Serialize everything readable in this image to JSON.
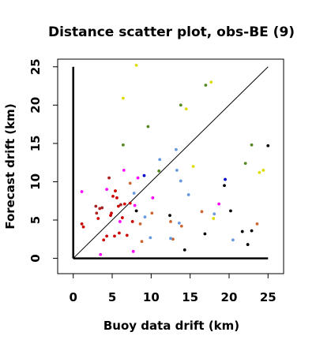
{
  "chart_data": {
    "type": "scatter",
    "title": "Distance scatter plot, obs-BE (9)",
    "xlabel": "Buoy data drift (km)",
    "ylabel": "Forecast drift (km)",
    "xlim": [
      -2,
      27
    ],
    "ylim": [
      -2,
      26
    ],
    "xticks": [
      0,
      5,
      10,
      15,
      20,
      25
    ],
    "yticks": [
      0,
      5,
      10,
      15,
      20,
      25
    ],
    "x_tick_labels": [
      "0",
      "5",
      "10",
      "15",
      "20",
      "25"
    ],
    "y_tick_labels": [
      "0",
      "5",
      "10",
      "15",
      "20",
      "25"
    ],
    "grid": false,
    "legend": "none",
    "reference_axes": {
      "x": [
        0,
        25
      ],
      "y": [
        0,
        25
      ]
    },
    "reference_line": {
      "from": [
        0,
        0
      ],
      "to": [
        25,
        25
      ]
    },
    "points": [
      {
        "x": 1.1,
        "y": 4.5,
        "color": "#cc0000"
      },
      {
        "x": 1.3,
        "y": 4.1,
        "color": "#cc0000"
      },
      {
        "x": 2.9,
        "y": 6.8,
        "color": "#aa2222"
      },
      {
        "x": 3.0,
        "y": 5.9,
        "color": "#aa2222"
      },
      {
        "x": 3.2,
        "y": 5.2,
        "color": "#cc0000"
      },
      {
        "x": 3.4,
        "y": 6.5,
        "color": "#aa2222"
      },
      {
        "x": 3.7,
        "y": 6.6,
        "color": "#aa2222"
      },
      {
        "x": 3.9,
        "y": 2.4,
        "color": "#cc0000"
      },
      {
        "x": 4.3,
        "y": 2.9,
        "color": "#cc0000"
      },
      {
        "x": 4.6,
        "y": 10.5,
        "color": "#aa2222"
      },
      {
        "x": 4.8,
        "y": 5.6,
        "color": "#cc0000"
      },
      {
        "x": 4.9,
        "y": 5.9,
        "color": "#cc0000"
      },
      {
        "x": 5.1,
        "y": 8.1,
        "color": "#cc0000"
      },
      {
        "x": 5.3,
        "y": 2.9,
        "color": "#cc0000"
      },
      {
        "x": 5.4,
        "y": 8.8,
        "color": "#cc0000"
      },
      {
        "x": 5.6,
        "y": 7.9,
        "color": "#cc0000"
      },
      {
        "x": 5.8,
        "y": 6.8,
        "color": "#cc0000"
      },
      {
        "x": 5.9,
        "y": 3.3,
        "color": "#cc0000"
      },
      {
        "x": 6.1,
        "y": 7.0,
        "color": "#aa2222"
      },
      {
        "x": 6.3,
        "y": 5.3,
        "color": "#cc0000"
      },
      {
        "x": 6.6,
        "y": 7.1,
        "color": "#cc0000"
      },
      {
        "x": 6.9,
        "y": 3.0,
        "color": "#cc0000"
      },
      {
        "x": 7.3,
        "y": 7.2,
        "color": "#cc0000"
      },
      {
        "x": 7.6,
        "y": 4.8,
        "color": "#cc0000"
      },
      {
        "x": 1.1,
        "y": 8.7,
        "color": "#ff00ff"
      },
      {
        "x": 3.5,
        "y": 0.5,
        "color": "#ff00ff"
      },
      {
        "x": 4.3,
        "y": 9.0,
        "color": "#ff00ff"
      },
      {
        "x": 6.0,
        "y": 4.8,
        "color": "#ff00ff"
      },
      {
        "x": 6.5,
        "y": 11.5,
        "color": "#ff00ff"
      },
      {
        "x": 7.7,
        "y": 0.9,
        "color": "#ff00ff"
      },
      {
        "x": 7.9,
        "y": 6.9,
        "color": "#ff00ff"
      },
      {
        "x": 8.3,
        "y": 10.5,
        "color": "#ff00ff"
      },
      {
        "x": 10.2,
        "y": 7.9,
        "color": "#ff00ff"
      },
      {
        "x": 18.7,
        "y": 7.1,
        "color": "#ff00ff"
      },
      {
        "x": 7.3,
        "y": 9.8,
        "color": "#cc6633"
      },
      {
        "x": 8.6,
        "y": 4.5,
        "color": "#cc6633"
      },
      {
        "x": 8.8,
        "y": 2.2,
        "color": "#cc6633"
      },
      {
        "x": 10.1,
        "y": 5.9,
        "color": "#cc6633"
      },
      {
        "x": 12.5,
        "y": 4.8,
        "color": "#cc6633"
      },
      {
        "x": 12.8,
        "y": 2.5,
        "color": "#cc6633"
      },
      {
        "x": 13.9,
        "y": 4.2,
        "color": "#cc6633"
      },
      {
        "x": 16.5,
        "y": 6.1,
        "color": "#cc6633"
      },
      {
        "x": 23.6,
        "y": 4.5,
        "color": "#cc6633"
      },
      {
        "x": 7.8,
        "y": 8.5,
        "color": "#6699dd"
      },
      {
        "x": 9.2,
        "y": 5.4,
        "color": "#6699dd"
      },
      {
        "x": 9.9,
        "y": 2.7,
        "color": "#6699dd"
      },
      {
        "x": 11.1,
        "y": 12.9,
        "color": "#6699dd"
      },
      {
        "x": 12.5,
        "y": 2.6,
        "color": "#6699dd"
      },
      {
        "x": 13.2,
        "y": 14.2,
        "color": "#6699dd"
      },
      {
        "x": 13.3,
        "y": 11.5,
        "color": "#6699dd"
      },
      {
        "x": 13.6,
        "y": 4.6,
        "color": "#6699dd"
      },
      {
        "x": 13.8,
        "y": 10.1,
        "color": "#6699dd"
      },
      {
        "x": 14.8,
        "y": 8.3,
        "color": "#6699dd"
      },
      {
        "x": 18.1,
        "y": 5.8,
        "color": "#6699dd"
      },
      {
        "x": 20.5,
        "y": 2.4,
        "color": "#6699dd"
      },
      {
        "x": 6.4,
        "y": 14.8,
        "color": "#558822"
      },
      {
        "x": 9.6,
        "y": 17.2,
        "color": "#558822"
      },
      {
        "x": 11.0,
        "y": 11.4,
        "color": "#558822"
      },
      {
        "x": 13.8,
        "y": 20.0,
        "color": "#558822"
      },
      {
        "x": 17.0,
        "y": 22.6,
        "color": "#558822"
      },
      {
        "x": 22.1,
        "y": 12.4,
        "color": "#558822"
      },
      {
        "x": 22.9,
        "y": 14.8,
        "color": "#558822"
      },
      {
        "x": 6.4,
        "y": 20.9,
        "color": "#dddd00"
      },
      {
        "x": 8.1,
        "y": 25.2,
        "color": "#dddd00"
      },
      {
        "x": 14.5,
        "y": 19.5,
        "color": "#dddd00"
      },
      {
        "x": 15.4,
        "y": 12.0,
        "color": "#dddd00"
      },
      {
        "x": 17.7,
        "y": 23.0,
        "color": "#dddd00"
      },
      {
        "x": 18.0,
        "y": 5.2,
        "color": "#dddd00"
      },
      {
        "x": 23.9,
        "y": 11.2,
        "color": "#dddd00"
      },
      {
        "x": 24.4,
        "y": 11.5,
        "color": "#dddd00"
      },
      {
        "x": 9.1,
        "y": 10.8,
        "color": "#0000cc"
      },
      {
        "x": 19.5,
        "y": 10.3,
        "color": "#0000cc"
      },
      {
        "x": 8.1,
        "y": 6.2,
        "color": "#000000"
      },
      {
        "x": 12.4,
        "y": 5.6,
        "color": "#000000"
      },
      {
        "x": 14.3,
        "y": 1.1,
        "color": "#000000"
      },
      {
        "x": 16.9,
        "y": 3.2,
        "color": "#000000"
      },
      {
        "x": 19.4,
        "y": 9.5,
        "color": "#000000"
      },
      {
        "x": 20.2,
        "y": 6.2,
        "color": "#000000"
      },
      {
        "x": 21.7,
        "y": 3.5,
        "color": "#000000"
      },
      {
        "x": 22.4,
        "y": 1.8,
        "color": "#000000"
      },
      {
        "x": 22.9,
        "y": 3.6,
        "color": "#000000"
      },
      {
        "x": 25.0,
        "y": 14.7,
        "color": "#000000"
      }
    ]
  }
}
